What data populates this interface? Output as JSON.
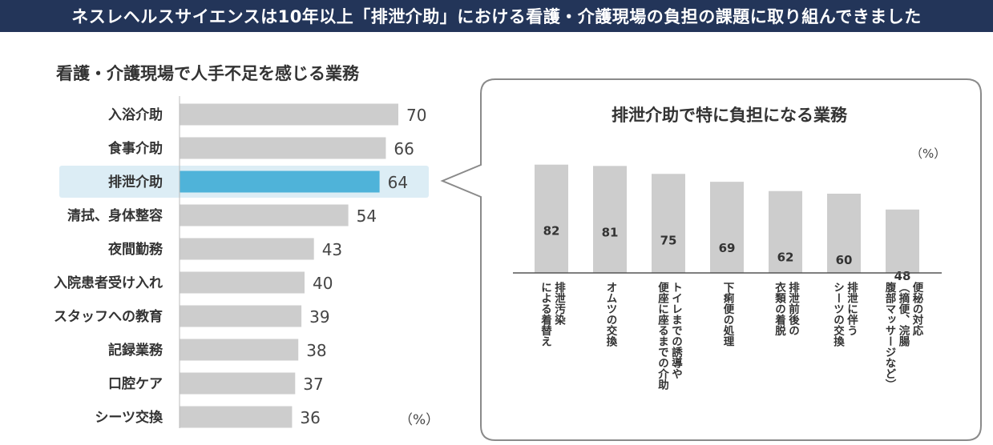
{
  "banner": {
    "text": "ネスレヘルスサイエンスは10年以上「排泄介助」における看護・介護現場の負担の課題に取り組んできました"
  },
  "chart_data": [
    {
      "type": "bar",
      "orientation": "horizontal",
      "title": "看護・介護現場で人手不足を感じる業務",
      "unit": "（%）",
      "categories": [
        "入浴介助",
        "食事介助",
        "排泄介助",
        "清拭、身体整容",
        "夜間勤務",
        "入院患者受け入れ",
        "スタッフへの教育",
        "記録業務",
        "口腔ケア",
        "シーツ交換"
      ],
      "values": [
        70,
        66,
        64,
        54,
        43,
        40,
        39,
        38,
        37,
        36
      ],
      "highlight": "排泄介助",
      "xlim": [
        0,
        80
      ],
      "colors": {
        "bar": "#cdcdcd",
        "highlight_bar": "#4fb3d9",
        "highlight_bg": "#dcedf5"
      }
    },
    {
      "type": "bar",
      "orientation": "vertical",
      "title": "排泄介助で特に負担になる業務",
      "unit": "（%）",
      "categories": [
        "排泄汚染\nによる着替え",
        "オムツの交換",
        "トイレまでの誘導や\n便座に座るまでの介助",
        "下痢便の処理",
        "排泄前後の\n衣類の着脱",
        "排泄に伴う\nシーツの交換",
        "便秘の対応\n（摘便、浣腸\n腹部マッサージなど）"
      ],
      "values": [
        82,
        81,
        75,
        69,
        62,
        60,
        48
      ],
      "ylim": [
        0,
        100
      ],
      "colors": {
        "bar": "#cdcdcd",
        "frame": "#8a8a8a"
      }
    }
  ]
}
